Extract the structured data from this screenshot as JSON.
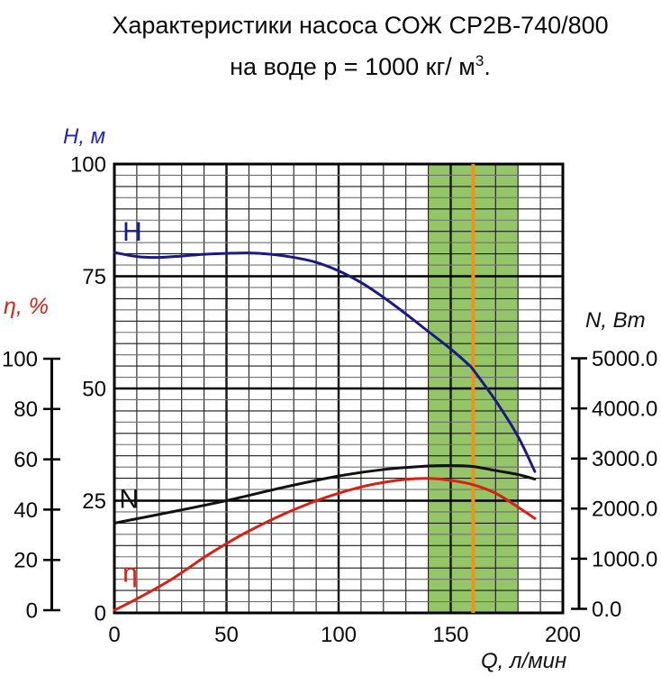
{
  "title": {
    "line1": "Характеристики насоса СОЖ СР2В-740/800",
    "line2_pre": "на воде р = 1000 кг/ м",
    "line2_sup": "3",
    "line2_post": "."
  },
  "chart_data": {
    "type": "line",
    "title": "Характеристики насоса СОЖ СР2В-740/800 на воде р = 1000 кг/м3",
    "grid": "on",
    "x_axis": {
      "label": "Q, л/мин",
      "min": 0,
      "max": 200,
      "ticks": [
        0,
        50,
        100,
        150,
        200
      ],
      "minor_step": 10,
      "major_step": 50
    },
    "h_axis": {
      "label": "H, м",
      "min": 0,
      "max": 100,
      "ticks": [
        0,
        25,
        50,
        75,
        100
      ],
      "minor_step": 2.5,
      "major_step": 25,
      "color": "#2525b2"
    },
    "eta_axis": {
      "label": "η, %",
      "min": 0,
      "max": 100,
      "ticks": [
        0,
        20,
        40,
        60,
        80,
        100
      ],
      "color": "#d92015"
    },
    "n_axis": {
      "label": "N, Вт",
      "min": 0,
      "max": 5000,
      "tick_labels": [
        "0.0",
        "1000.0",
        "2000.0",
        "3000.0",
        "4000.0",
        "5000.0"
      ],
      "tick_values": [
        0,
        1000,
        2000,
        3000,
        4000,
        5000
      ],
      "color": "#111111"
    },
    "band": {
      "from": 140,
      "to": 180,
      "color": "#94c567"
    },
    "marker_line": {
      "x": 160,
      "color": "#f1921e"
    },
    "series": [
      {
        "name": "H",
        "scale": "H",
        "color": "#1a1a85",
        "label": "H",
        "label_q": 8,
        "label_value": 85,
        "points": [
          [
            0,
            80.3
          ],
          [
            10,
            79.4
          ],
          [
            20,
            79.2
          ],
          [
            30,
            79.5
          ],
          [
            40,
            79.9
          ],
          [
            50,
            80.1
          ],
          [
            60,
            80.2
          ],
          [
            70,
            79.9
          ],
          [
            80,
            79.2
          ],
          [
            90,
            78.1
          ],
          [
            100,
            76.2
          ],
          [
            110,
            73.6
          ],
          [
            120,
            70.3
          ],
          [
            130,
            66.6
          ],
          [
            140,
            62.7
          ],
          [
            150,
            58.8
          ],
          [
            158,
            55.3
          ],
          [
            160,
            54.2
          ],
          [
            170,
            47.3
          ],
          [
            180,
            39.3
          ],
          [
            187.5,
            31.5
          ]
        ]
      },
      {
        "name": "N",
        "scale": "N",
        "color": "#111111",
        "label": "N",
        "label_q": 6.5,
        "label_value": 2200,
        "points": [
          [
            0,
            1710
          ],
          [
            25,
            1930
          ],
          [
            50,
            2160
          ],
          [
            75,
            2420
          ],
          [
            100,
            2650
          ],
          [
            120,
            2780
          ],
          [
            140,
            2850
          ],
          [
            150,
            2860
          ],
          [
            160,
            2840
          ],
          [
            170,
            2760
          ],
          [
            180,
            2680
          ],
          [
            187.5,
            2590
          ]
        ]
      },
      {
        "name": "eta",
        "scale": "ETA",
        "color": "#d92015",
        "label": "η",
        "label_q": 7,
        "label_value": 15,
        "points": [
          [
            0,
            0
          ],
          [
            10,
            4.5
          ],
          [
            25,
            12
          ],
          [
            40,
            21
          ],
          [
            50,
            26.5
          ],
          [
            60,
            31.5
          ],
          [
            75,
            38
          ],
          [
            90,
            43.5
          ],
          [
            100,
            46.5
          ],
          [
            110,
            49
          ],
          [
            120,
            50.8
          ],
          [
            130,
            52
          ],
          [
            140,
            52.4
          ],
          [
            150,
            51.6
          ],
          [
            160,
            49.9
          ],
          [
            170,
            46.5
          ],
          [
            180,
            41
          ],
          [
            187.5,
            36.5
          ]
        ]
      }
    ]
  }
}
